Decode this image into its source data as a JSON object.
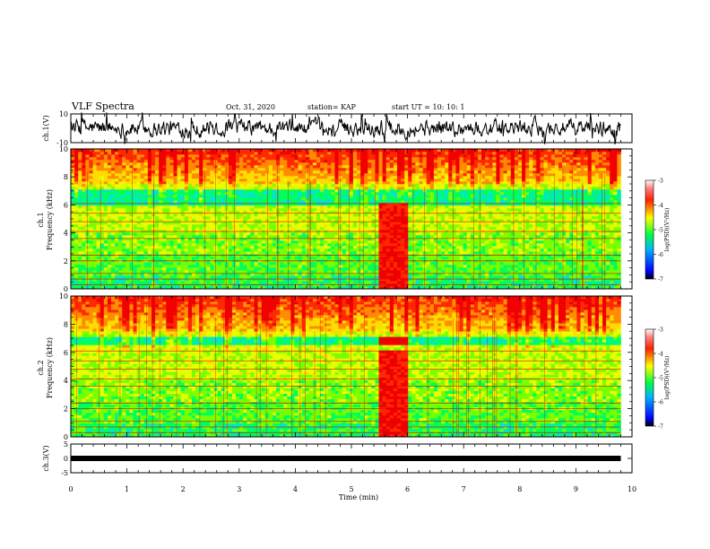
{
  "header": {
    "title": "VLF Spectra",
    "date": "Oct. 31, 2020",
    "station": "station= KAP",
    "start": "start  UT  =   10: 10: 1"
  },
  "chart_data": [
    {
      "type": "line",
      "panel": "ch1-waveform",
      "ylabel": "ch.1(V)",
      "ylim": [
        -10,
        10
      ],
      "y_ticks": [
        "10",
        "-10"
      ],
      "x_range": [
        0,
        10
      ],
      "data_extent": [
        0,
        9.8
      ],
      "description_values": {
        "mean": 0,
        "typical_amplitude": 6
      },
      "color": "#000000"
    },
    {
      "type": "heatmap",
      "panel": "ch1-spectrogram",
      "ylabel": "ch.1\nFrequency (kHz)",
      "ylabel_lines": [
        "ch.1",
        "Frequency (kHz)"
      ],
      "ylim": [
        0,
        10
      ],
      "y_ticks": [
        "0",
        "2",
        "4",
        "6",
        "8",
        "10"
      ],
      "x_range": [
        0,
        10
      ],
      "data_extent": [
        0,
        9.8
      ],
      "colorbar": {
        "label": "log(PSD)(V²/Hz)",
        "range": [
          -7,
          -3
        ],
        "ticks": [
          "-3",
          "-4",
          "-5",
          "-6",
          "-7"
        ]
      },
      "features": {
        "burst_interval_min": [
          5.45,
          6.0
        ],
        "strong_band_khz": [
          6.0,
          7.2
        ]
      }
    },
    {
      "type": "heatmap",
      "panel": "ch2-spectrogram",
      "ylabel": "ch.2\nFrequency (kHz)",
      "ylabel_lines": [
        "ch.2",
        "Frequency (kHz)"
      ],
      "ylim": [
        0,
        10
      ],
      "y_ticks": [
        "0",
        "2",
        "4",
        "6",
        "8",
        "10"
      ],
      "x_range": [
        0,
        10
      ],
      "data_extent": [
        0,
        9.8
      ],
      "colorbar": {
        "label": "log(PSD)(V²/Hz)",
        "range": [
          -7,
          -3
        ],
        "ticks": [
          "-3",
          "-4",
          "-5",
          "-6",
          "-7"
        ]
      },
      "features": {
        "burst_interval_min": [
          5.45,
          6.0
        ],
        "strong_band_khz": [
          6.6,
          7.2
        ]
      }
    },
    {
      "type": "line",
      "panel": "ch3-waveform",
      "ylabel": "ch.3(V)",
      "ylim": [
        -5,
        5
      ],
      "y_ticks": [
        "5",
        "0",
        "-5"
      ],
      "x_range": [
        0,
        10
      ],
      "data_extent": [
        0,
        9.8
      ],
      "description_values": {
        "mean": 0
      },
      "color": "#000000"
    }
  ],
  "x_axis": {
    "xlabel": "Time  (min)",
    "xlim": [
      0,
      10
    ],
    "ticks": [
      "0",
      "1",
      "2",
      "3",
      "4",
      "5",
      "6",
      "7",
      "8",
      "9",
      "10"
    ]
  }
}
